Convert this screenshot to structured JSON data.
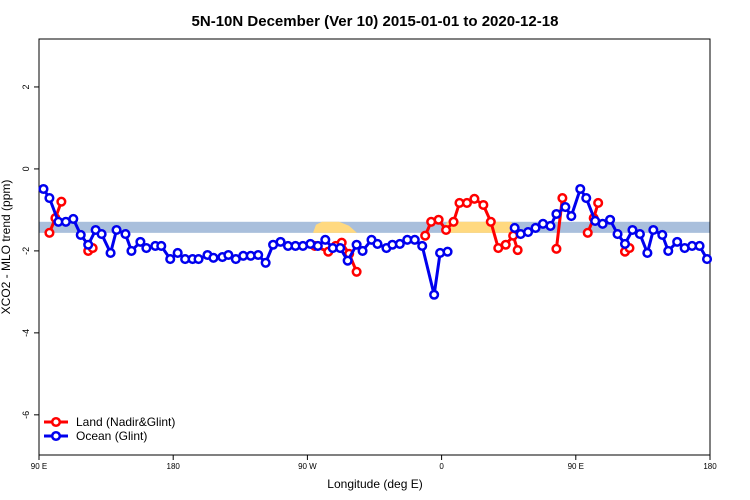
{
  "chart_data": {
    "type": "line",
    "title": "5N-10N December (Ver 10)   2015-01-01 to 2020-12-18",
    "x_label": "Longitude (deg E)",
    "y_label": "XCO2 - MLO trend (ppm)",
    "xlim": [
      90,
      540
    ],
    "ylim": [
      -6.98,
      3.17
    ],
    "xticks": [
      {
        "value": 90,
        "label": "90 E"
      },
      {
        "value": 180,
        "label": "180"
      },
      {
        "value": 270,
        "label": "90 W"
      },
      {
        "value": 360,
        "label": "0"
      },
      {
        "value": 450,
        "label": "90 E"
      },
      {
        "value": 540,
        "label": "180"
      }
    ],
    "yticks": [
      2,
      0,
      -2,
      -4,
      -6
    ],
    "band": {
      "range": [
        -1.56,
        -1.29
      ],
      "color": "#a9bfdc"
    },
    "legend": "bottom-left",
    "series": [
      {
        "name": "Land (Nadir&Glint)",
        "color": "#ff0000",
        "x": [
          97,
          101,
          105,
          null,
          123,
          126,
          null,
          275,
          284,
          289,
          293,
          298,
          303,
          null,
          349,
          353,
          358,
          363,
          368,
          372,
          377,
          382,
          388,
          393,
          398,
          403,
          408,
          411,
          null,
          437,
          441,
          null,
          458,
          462,
          465,
          null,
          483,
          486
        ],
        "values": [
          -1.56,
          -1.2,
          -0.8,
          null,
          -2.0,
          -1.93,
          null,
          -1.88,
          -2.02,
          -1.88,
          -1.8,
          -2.07,
          -2.51,
          null,
          -1.63,
          -1.29,
          -1.24,
          -1.49,
          -1.29,
          -0.83,
          -0.83,
          -0.73,
          -0.88,
          -1.29,
          -1.93,
          -1.85,
          -1.63,
          -1.98,
          null,
          -1.95,
          -0.71,
          null,
          -1.56,
          -1.2,
          -0.83,
          null,
          -2.02,
          -1.93
        ]
      },
      {
        "name": "Ocean (Glint)",
        "color": "#0000ee",
        "x": [
          93,
          97,
          103,
          108,
          113,
          118,
          123,
          128,
          132,
          138,
          142,
          148,
          152,
          158,
          162,
          168,
          172,
          178,
          183,
          188,
          193,
          197,
          203,
          207,
          213,
          217,
          222,
          227,
          232,
          237,
          242,
          247,
          252,
          257,
          262,
          267,
          272,
          277,
          282,
          287,
          292,
          297,
          303,
          307,
          313,
          317,
          323,
          327,
          332,
          337,
          342,
          347,
          355,
          359,
          364,
          null,
          409,
          413,
          418,
          423,
          428,
          433,
          437,
          443,
          447,
          453,
          457,
          463,
          468,
          473,
          478,
          483,
          488,
          493,
          498,
          502,
          508,
          512,
          518,
          523,
          528,
          533,
          538
        ],
        "values": [
          -0.49,
          -0.71,
          -1.29,
          -1.29,
          -1.22,
          -1.61,
          -1.85,
          -1.49,
          -1.59,
          -2.05,
          -1.49,
          -1.59,
          -2.0,
          -1.78,
          -1.93,
          -1.88,
          -1.88,
          -2.2,
          -2.05,
          -2.2,
          -2.2,
          -2.2,
          -2.1,
          -2.17,
          -2.15,
          -2.1,
          -2.2,
          -2.12,
          -2.12,
          -2.1,
          -2.29,
          -1.85,
          -1.78,
          -1.88,
          -1.88,
          -1.88,
          -1.83,
          -1.88,
          -1.73,
          -1.93,
          -1.93,
          -2.24,
          -1.85,
          -2.0,
          -1.73,
          -1.83,
          -1.93,
          -1.85,
          -1.83,
          -1.73,
          -1.73,
          -1.88,
          -3.07,
          -2.05,
          -2.02,
          null,
          -1.44,
          -1.59,
          -1.54,
          -1.44,
          -1.34,
          -1.39,
          -1.1,
          -0.93,
          -1.15,
          -0.49,
          -0.71,
          -1.27,
          -1.34,
          -1.24,
          -1.59,
          -1.83,
          -1.49,
          -1.59,
          -2.05,
          -1.49,
          -1.61,
          -2.0,
          -1.78,
          -1.93,
          -1.88,
          -1.88,
          -2.2
        ]
      }
    ]
  }
}
